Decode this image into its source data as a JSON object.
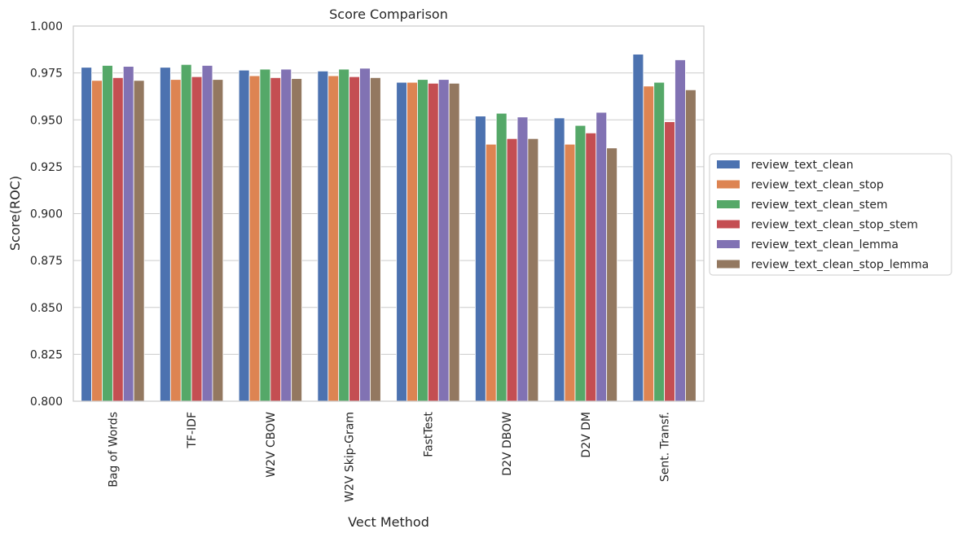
{
  "chart_data": {
    "type": "bar",
    "title": "Score Comparison",
    "xlabel": "Vect Method",
    "ylabel": "Score(ROC)",
    "ylim": [
      0.8,
      1.0
    ],
    "yticks": [
      "0.800",
      "0.825",
      "0.850",
      "0.875",
      "0.900",
      "0.925",
      "0.950",
      "0.975",
      "1.000"
    ],
    "grid": true,
    "legend_position": "right",
    "categories": [
      "Bag of Words",
      "TF-IDF",
      "W2V CBOW",
      "W2V Skip-Gram",
      "FastTest",
      "D2V DBOW",
      "D2V DM",
      "Sent. Transf."
    ],
    "series": [
      {
        "name": "review_text_clean",
        "color": "#4c72b0",
        "values": [
          0.978,
          0.978,
          0.9765,
          0.976,
          0.97,
          0.952,
          0.951,
          0.985
        ]
      },
      {
        "name": "review_text_clean_stop",
        "color": "#dd8452",
        "values": [
          0.971,
          0.9715,
          0.9735,
          0.9735,
          0.97,
          0.937,
          0.937,
          0.968
        ]
      },
      {
        "name": "review_text_clean_stem",
        "color": "#55a868",
        "values": [
          0.979,
          0.9795,
          0.977,
          0.977,
          0.9715,
          0.9535,
          0.947,
          0.97
        ]
      },
      {
        "name": "review_text_clean_stop_stem",
        "color": "#c44e52",
        "values": [
          0.9725,
          0.973,
          0.9725,
          0.973,
          0.9695,
          0.94,
          0.943,
          0.949
        ]
      },
      {
        "name": "review_text_clean_lemma",
        "color": "#8172b3",
        "values": [
          0.9785,
          0.979,
          0.977,
          0.9775,
          0.9715,
          0.9515,
          0.954,
          0.982
        ]
      },
      {
        "name": "review_text_clean_stop_lemma",
        "color": "#937860",
        "values": [
          0.971,
          0.9715,
          0.972,
          0.9725,
          0.9695,
          0.94,
          0.935,
          0.966
        ]
      }
    ]
  }
}
